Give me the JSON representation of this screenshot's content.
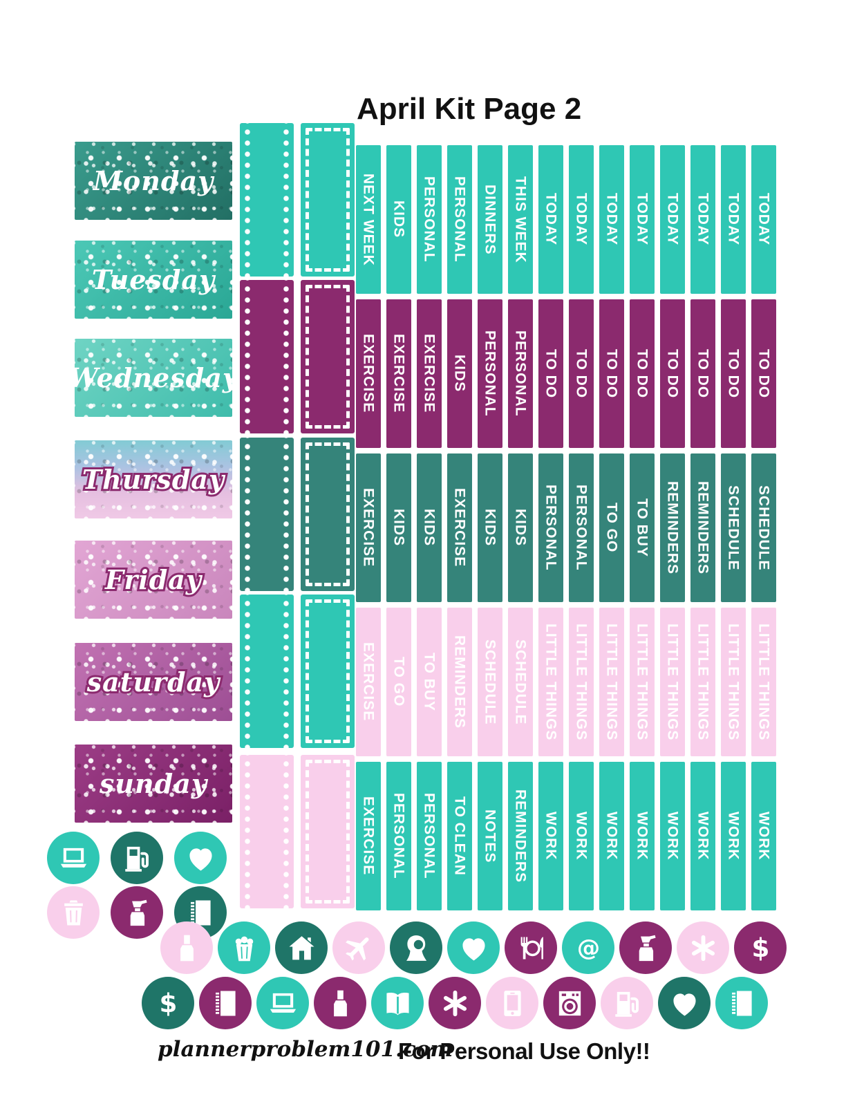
{
  "title": "April Kit Page 2",
  "footer": {
    "site": "plannerproblem101.com",
    "notice": "For Personal Use Only!!"
  },
  "colors": {
    "teal": "#2fc7b4",
    "purple": "#8b2a6e",
    "sea_green": "#35847a",
    "dark_teal": "#1f7568",
    "blush": "#f9cfeb",
    "ink": "#111111",
    "day_outline": "#8b2a6e"
  },
  "days": [
    {
      "label": "Monday",
      "outlined": false,
      "gradient": {
        "angle": 135,
        "stops": [
          "#3a9c8d",
          "#226f64"
        ]
      }
    },
    {
      "label": "Tuesday",
      "outlined": false,
      "gradient": {
        "angle": 135,
        "stops": [
          "#4cc8b6",
          "#2aa795"
        ]
      }
    },
    {
      "label": "Wednesday",
      "outlined": false,
      "gradient": {
        "angle": 135,
        "stops": [
          "#6fd4c4",
          "#3fbcab"
        ]
      }
    },
    {
      "label": "Thursday",
      "outlined": true,
      "gradient": {
        "angle": 180,
        "stops": [
          "#82cbd4",
          "#aac3e2",
          "#e5bfe0",
          "#f0c9e6"
        ]
      }
    },
    {
      "label": "Friday",
      "outlined": true,
      "gradient": {
        "angle": 135,
        "stops": [
          "#e2a6d4",
          "#c986bc"
        ]
      }
    },
    {
      "label": "saturday",
      "outlined": true,
      "gradient": {
        "angle": 135,
        "stops": [
          "#c172b2",
          "#9d4e94"
        ]
      }
    },
    {
      "label": "sunday",
      "outlined": false,
      "gradient": {
        "angle": 135,
        "stops": [
          "#9c3d86",
          "#7a2066"
        ]
      }
    }
  ],
  "checklist_boxes": {
    "styles": [
      "dotted",
      "dashed"
    ],
    "row_colors": [
      "teal",
      "purple",
      "sea_green",
      "teal",
      "blush"
    ]
  },
  "strip_rows": [
    {
      "color": "teal",
      "labels": [
        "NEXT WEEK",
        "KIDS",
        "PERSONAL",
        "PERSONAL",
        "DINNERS",
        "THIS WEEK",
        "TODAY",
        "TODAY",
        "TODAY",
        "TODAY",
        "TODAY",
        "TODAY",
        "TODAY",
        "TODAY"
      ]
    },
    {
      "color": "purple",
      "labels": [
        "EXERCISE",
        "EXERCISE",
        "EXERCISE",
        "KIDS",
        "PERSONAL",
        "PERSONAL",
        "TO DO",
        "TO DO",
        "TO DO",
        "TO DO",
        "TO DO",
        "TO DO",
        "TO DO",
        "TO DO"
      ]
    },
    {
      "color": "sea_green",
      "labels": [
        "EXERCISE",
        "KIDS",
        "KIDS",
        "EXERCISE",
        "KIDS",
        "KIDS",
        "PERSONAL",
        "PERSONAL",
        "TO GO",
        "TO BUY",
        "REMINDERS",
        "REMINDERS",
        "SCHEDULE",
        "SCHEDULE"
      ]
    },
    {
      "color": "blush",
      "labels": [
        "EXERCISE",
        "TO GO",
        "TO BUY",
        "REMINDERS",
        "SCHEDULE",
        "SCHEDULE",
        "LITTLE THINGS",
        "LITTLE THINGS",
        "LITTLE THINGS",
        "LITTLE THINGS",
        "LITTLE THINGS",
        "LITTLE THINGS",
        "LITTLE THINGS",
        "LITTLE THINGS"
      ]
    },
    {
      "color": "teal",
      "labels": [
        "EXERCISE",
        "PERSONAL",
        "PERSONAL",
        "TO CLEAN",
        "NOTES",
        "REMINDERS",
        "WORK",
        "WORK",
        "WORK",
        "WORK",
        "WORK",
        "WORK",
        "WORK",
        "WORK"
      ]
    }
  ],
  "corner_icons": [
    [
      {
        "icon": "laptop",
        "color": "teal"
      },
      {
        "icon": "fuel",
        "color": "dark_teal"
      },
      {
        "icon": "heart",
        "color": "teal"
      }
    ],
    [
      {
        "icon": "trash",
        "color": "blush"
      },
      {
        "icon": "spray",
        "color": "purple"
      },
      {
        "icon": "notebook",
        "color": "dark_teal"
      }
    ]
  ],
  "icon_rows": [
    [
      {
        "icon": "polish",
        "color": "blush"
      },
      {
        "icon": "popcorn",
        "color": "teal"
      },
      {
        "icon": "house",
        "color": "dark_teal"
      },
      {
        "icon": "plane",
        "color": "blush"
      },
      {
        "icon": "woman",
        "color": "dark_teal"
      },
      {
        "icon": "heart",
        "color": "teal"
      },
      {
        "icon": "plate",
        "color": "purple"
      },
      {
        "icon": "at",
        "color": "teal"
      },
      {
        "icon": "spray",
        "color": "purple"
      },
      {
        "icon": "asterisk",
        "color": "blush"
      },
      {
        "icon": "dollar",
        "color": "purple"
      }
    ],
    [
      {
        "icon": "dollar",
        "color": "dark_teal"
      },
      {
        "icon": "notebook",
        "color": "purple"
      },
      {
        "icon": "laptop",
        "color": "teal"
      },
      {
        "icon": "polish",
        "color": "purple"
      },
      {
        "icon": "book",
        "color": "teal"
      },
      {
        "icon": "asterisk",
        "color": "purple"
      },
      {
        "icon": "phone",
        "color": "blush"
      },
      {
        "icon": "washer",
        "color": "purple"
      },
      {
        "icon": "fuel",
        "color": "blush"
      },
      {
        "icon": "heart",
        "color": "dark_teal"
      },
      {
        "icon": "notebook",
        "color": "teal"
      }
    ]
  ]
}
